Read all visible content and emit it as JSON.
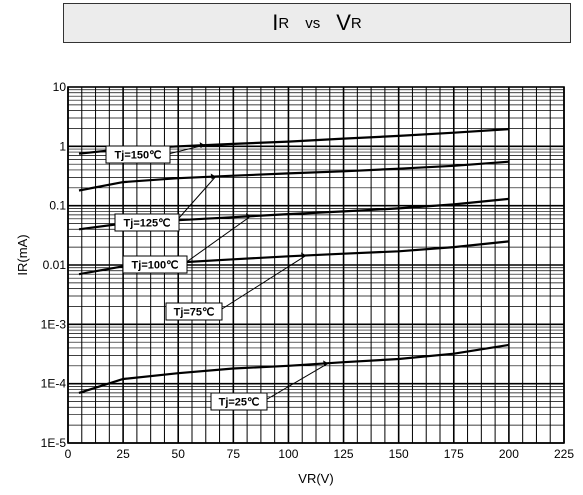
{
  "title": {
    "main1": "I",
    "sub1": "R",
    "vs": "vs",
    "main2": "V",
    "sub2": "R"
  },
  "chart_data": {
    "type": "line",
    "xlabel": "VR(V)",
    "ylabel": "IR(mA)",
    "xlim": [
      0,
      225
    ],
    "ylim": [
      1e-05,
      10
    ],
    "y_scale": "log",
    "grid": true,
    "x_ticks": [
      0,
      25,
      50,
      75,
      100,
      125,
      150,
      175,
      200,
      225
    ],
    "x_tick_labels": [
      "0",
      "25",
      "50",
      "75",
      "100",
      "125",
      "150",
      "175",
      "200",
      "225"
    ],
    "y_ticks": [
      1e-05,
      0.0001,
      0.001,
      0.01,
      0.1,
      1,
      10
    ],
    "y_tick_labels": [
      "1E-5",
      "1E-4",
      "1E-3",
      "0.01",
      "0.1",
      "1",
      "10"
    ],
    "series": [
      {
        "name": "Tj=150℃",
        "x": [
          5,
          25,
          50,
          75,
          100,
          125,
          150,
          175,
          200
        ],
        "y": [
          0.75,
          0.9,
          1.0,
          1.1,
          1.2,
          1.35,
          1.5,
          1.7,
          1.95
        ]
      },
      {
        "name": "Tj=125℃",
        "x": [
          5,
          25,
          50,
          75,
          100,
          125,
          150,
          175,
          200
        ],
        "y": [
          0.18,
          0.25,
          0.29,
          0.32,
          0.35,
          0.38,
          0.42,
          0.47,
          0.55
        ]
      },
      {
        "name": "Tj=100℃",
        "x": [
          5,
          25,
          50,
          75,
          100,
          125,
          150,
          175,
          200
        ],
        "y": [
          0.04,
          0.05,
          0.057,
          0.064,
          0.072,
          0.08,
          0.09,
          0.105,
          0.13
        ]
      },
      {
        "name": "Tj=75℃",
        "x": [
          5,
          25,
          50,
          75,
          100,
          125,
          150,
          175,
          200
        ],
        "y": [
          0.007,
          0.0095,
          0.011,
          0.0125,
          0.014,
          0.0155,
          0.017,
          0.02,
          0.025
        ]
      },
      {
        "name": "Tj=25℃",
        "x": [
          5,
          25,
          50,
          75,
          100,
          125,
          150,
          175,
          200
        ],
        "y": [
          7e-05,
          0.00012,
          0.00015,
          0.00018,
          0.0002,
          0.00023,
          0.00026,
          0.00032,
          0.00045
        ]
      }
    ],
    "annotations": [
      {
        "text": "Tj=150℃",
        "series": 0,
        "x": 62,
        "y": 1.05
      },
      {
        "text": "Tj=125℃",
        "series": 1,
        "x": 67,
        "y": 0.31
      },
      {
        "text": "Tj=100℃",
        "series": 2,
        "x": 83,
        "y": 0.067
      },
      {
        "text": "Tj=75℃",
        "series": 3,
        "x": 108,
        "y": 0.0145
      },
      {
        "text": "Tj=25℃",
        "series": 4,
        "x": 118,
        "y": 0.00022
      }
    ]
  }
}
